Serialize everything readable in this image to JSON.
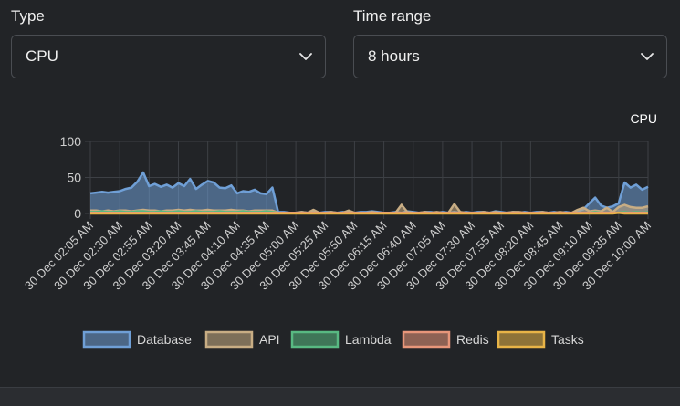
{
  "controls": {
    "type_label": "Type",
    "type_value": "CPU",
    "range_label": "Time range",
    "range_value": "8 hours"
  },
  "colors": {
    "background": "#222427",
    "text": "#e6e6e6",
    "grid": "#3d4045",
    "axis_text": "#cfcfcf"
  },
  "chart_data": {
    "type": "area",
    "title": "CPU",
    "ylim": [
      0,
      100
    ],
    "yticks": [
      0,
      50,
      100
    ],
    "grid": true,
    "legend_position": "bottom",
    "xtick_labels": [
      "30 Dec 02:05 AM",
      "30 Dec 02:30 AM",
      "30 Dec 02:55 AM",
      "30 Dec 03:20 AM",
      "30 Dec 03:45 AM",
      "30 Dec 04:10 AM",
      "30 Dec 04:35 AM",
      "30 Dec 05:00 AM",
      "30 Dec 05:25 AM",
      "30 Dec 05:50 AM",
      "30 Dec 06:15 AM",
      "30 Dec 06:40 AM",
      "30 Dec 07:05 AM",
      "30 Dec 07:30 AM",
      "30 Dec 07:55 AM",
      "30 Dec 08:20 AM",
      "30 Dec 08:45 AM",
      "30 Dec 09:10 AM",
      "30 Dec 09:35 AM",
      "30 Dec 10:00 AM"
    ],
    "series": [
      {
        "name": "Database",
        "color": "#6f9fd6",
        "values": [
          28,
          29,
          30,
          29,
          30,
          31,
          34,
          36,
          44,
          57,
          38,
          41,
          37,
          40,
          36,
          42,
          38,
          48,
          34,
          40,
          45,
          43,
          36,
          35,
          39,
          28,
          31,
          30,
          33,
          28,
          27,
          36,
          2,
          2,
          1,
          1,
          2,
          1,
          3,
          1,
          2,
          2,
          1,
          2,
          1,
          1,
          2,
          2,
          3,
          2,
          1,
          1,
          2,
          1,
          3,
          2,
          1,
          2,
          2,
          1,
          2,
          1,
          2,
          1,
          2,
          1,
          2,
          2,
          1,
          3,
          2,
          1,
          2,
          1,
          2,
          1,
          2,
          2,
          1,
          2,
          1,
          2,
          1,
          3,
          6,
          14,
          22,
          11,
          8,
          10,
          14,
          43,
          36,
          40,
          33,
          37
        ]
      },
      {
        "name": "API",
        "color": "#c8ad84",
        "values": [
          4,
          4,
          3,
          4,
          3,
          4,
          4,
          3,
          4,
          5,
          4,
          4,
          3,
          4,
          4,
          5,
          4,
          5,
          4,
          4,
          5,
          4,
          4,
          4,
          5,
          4,
          4,
          3,
          4,
          4,
          4,
          4,
          1,
          1,
          1,
          1,
          2,
          1,
          5,
          1,
          1,
          2,
          1,
          1,
          4,
          1,
          1,
          1,
          2,
          1,
          1,
          1,
          1,
          12,
          2,
          1,
          1,
          2,
          1,
          2,
          1,
          1,
          13,
          2,
          1,
          1,
          1,
          2,
          1,
          2,
          1,
          1,
          2,
          2,
          1,
          1,
          1,
          2,
          1,
          1,
          2,
          1,
          1,
          5,
          8,
          3,
          4,
          3,
          8,
          2,
          9,
          12,
          9,
          8,
          8,
          10
        ]
      },
      {
        "name": "Lambda",
        "color": "#58b982",
        "values": [
          2,
          2,
          3,
          2,
          2,
          3,
          2,
          2,
          3,
          3,
          2,
          2,
          3,
          2,
          2,
          3,
          2,
          2,
          3,
          2,
          2,
          2,
          3,
          2,
          2,
          2,
          3,
          2,
          2,
          2,
          3,
          2,
          1,
          1,
          1,
          1,
          1,
          1,
          1,
          1,
          1,
          1,
          1,
          1,
          1,
          1,
          1,
          1,
          1,
          1,
          1,
          1,
          1,
          1,
          1,
          1,
          1,
          1,
          1,
          1,
          1,
          1,
          1,
          1,
          1,
          1,
          1,
          1,
          1,
          1,
          1,
          1,
          1,
          1,
          1,
          1,
          1,
          1,
          1,
          1,
          1,
          1,
          1,
          1,
          1,
          1,
          2,
          1,
          1,
          1,
          1,
          2,
          1,
          2,
          1,
          2
        ]
      },
      {
        "name": "Redis",
        "color": "#e8967a",
        "values": [
          1,
          1,
          1,
          1,
          1,
          1,
          1,
          1,
          1,
          1,
          1,
          1,
          1,
          1,
          1,
          1,
          1,
          1,
          1,
          1,
          1,
          1,
          1,
          1,
          1,
          1,
          1,
          1,
          1,
          1,
          1,
          1,
          1,
          1,
          1,
          1,
          1,
          1,
          1,
          1,
          1,
          1,
          1,
          1,
          1,
          1,
          1,
          1,
          1,
          1,
          1,
          1,
          1,
          1,
          1,
          1,
          1,
          1,
          1,
          1,
          1,
          1,
          1,
          1,
          1,
          1,
          1,
          1,
          1,
          1,
          1,
          1,
          1,
          1,
          1,
          1,
          1,
          1,
          1,
          1,
          1,
          1,
          1,
          1,
          1,
          1,
          1,
          1,
          1,
          1,
          1,
          1,
          1,
          1,
          1,
          1
        ]
      },
      {
        "name": "Tasks",
        "color": "#e8b447",
        "values": [
          0,
          0,
          0,
          0,
          0,
          0,
          0,
          0,
          0,
          0,
          0,
          0,
          0,
          0,
          0,
          0,
          0,
          0,
          0,
          0,
          0,
          0,
          0,
          0,
          0,
          0,
          0,
          0,
          0,
          0,
          0,
          0,
          0,
          0,
          0,
          0,
          0,
          0,
          0,
          0,
          0,
          0,
          0,
          0,
          0,
          0,
          0,
          0,
          0,
          0,
          0,
          0,
          0,
          0,
          0,
          0,
          0,
          0,
          0,
          0,
          0,
          0,
          0,
          0,
          0,
          0,
          0,
          0,
          0,
          0,
          0,
          0,
          0,
          0,
          0,
          0,
          0,
          0,
          0,
          0,
          0,
          0,
          0,
          0,
          0,
          0,
          0,
          0,
          0,
          0,
          1,
          0,
          0,
          0,
          0,
          0
        ]
      }
    ]
  }
}
